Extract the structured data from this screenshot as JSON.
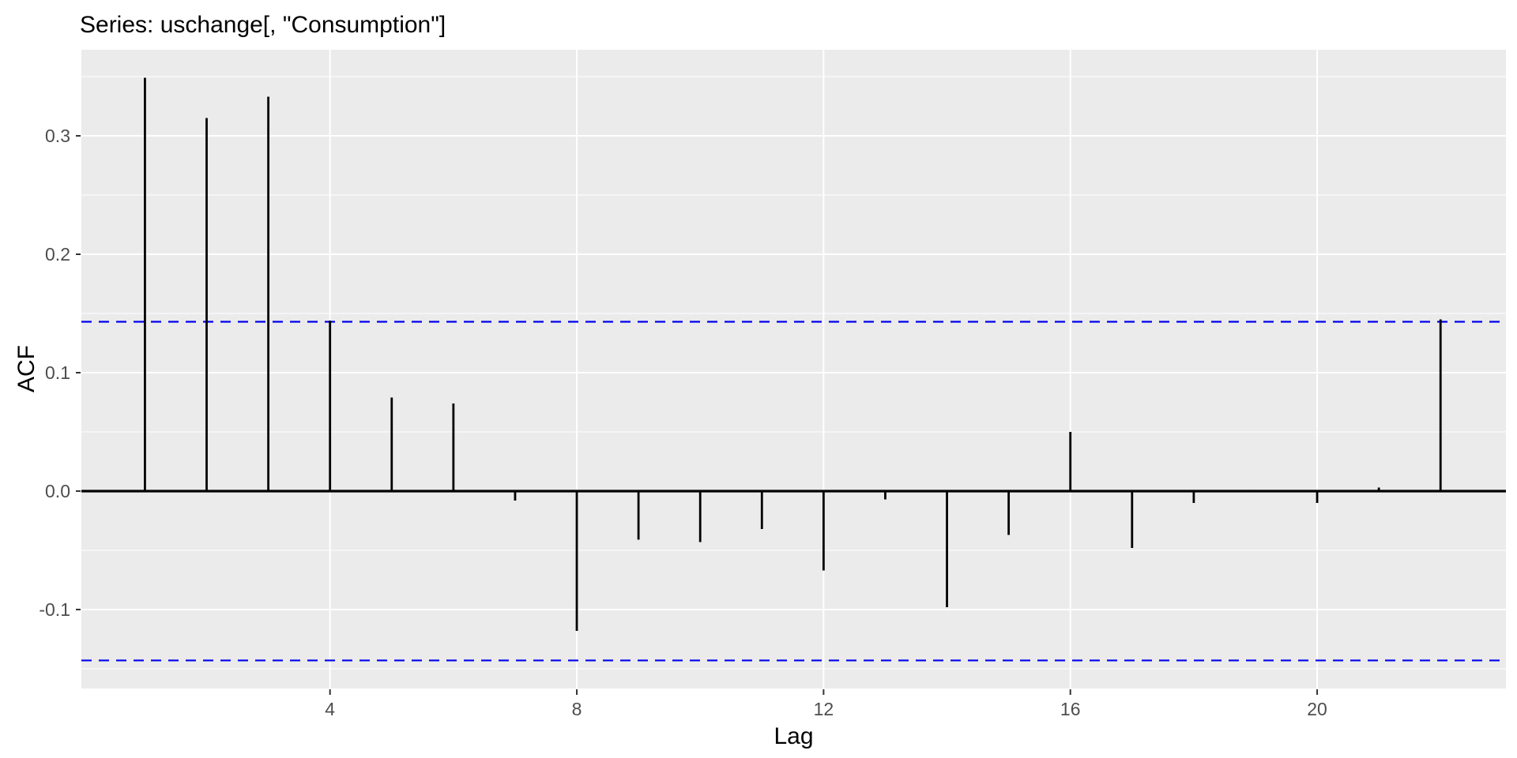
{
  "title": "Series: uschange[, \"Consumption\"]",
  "chart_data": {
    "type": "bar",
    "subtype": "acf-stick-plot",
    "title": "Series: uschange[, \"Consumption\"]",
    "xlabel": "Lag",
    "ylabel": "ACF",
    "x": [
      1,
      2,
      3,
      4,
      5,
      6,
      7,
      8,
      9,
      10,
      11,
      12,
      13,
      14,
      15,
      16,
      17,
      18,
      19,
      20,
      21,
      22
    ],
    "values": [
      0.349,
      0.315,
      0.333,
      0.144,
      0.079,
      0.074,
      -0.008,
      -0.118,
      -0.041,
      -0.043,
      -0.032,
      -0.067,
      -0.007,
      -0.098,
      -0.037,
      0.05,
      -0.048,
      -0.01,
      0.001,
      -0.01,
      0.003,
      0.145
    ],
    "confidence_bounds": {
      "upper": 0.143,
      "lower": -0.143,
      "line_style": "dashed"
    },
    "x_ticks": {
      "values": [
        4,
        8,
        12,
        16,
        20
      ],
      "labels": [
        "4",
        "8",
        "12",
        "16",
        "20"
      ]
    },
    "y_ticks": {
      "values": [
        -0.1,
        0,
        0.1,
        0.2,
        0.3
      ],
      "labels": [
        "-0.1",
        "0.0",
        "0.1",
        "0.2",
        "0.3"
      ]
    },
    "y_minor_gridlines": [
      -0.15,
      -0.05,
      0.05,
      0.15,
      0.25,
      0.35
    ],
    "xlim": [
      -0.03,
      23.06
    ],
    "ylim": [
      -0.1667,
      0.3727
    ],
    "grid": "horizontal major+minor white, vertical major white on gray panel",
    "legend": "none",
    "colors": {
      "panel_background": "#EBEBEB",
      "gridline": "#FFFFFF",
      "bar": "#000000",
      "zero_line": "#000000",
      "confidence_line": "#0000EE",
      "axis_text": "#4D4D4D",
      "tick_mark": "#333333",
      "title_text": "#000000"
    }
  }
}
